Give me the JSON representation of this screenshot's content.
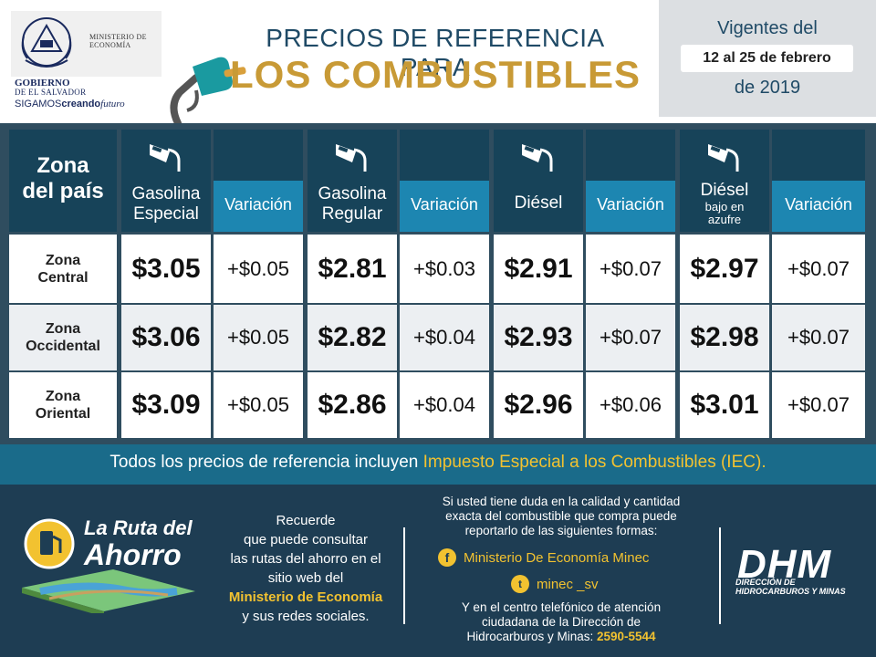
{
  "header": {
    "ministry": "MINISTERIO DE ECONOMÍA",
    "gov_line1": "GOBIERNO",
    "gov_line2": "DE EL SALVADOR",
    "slogan_a": "SIGAMOS",
    "slogan_b": "creando",
    "slogan_c": "futuro",
    "title_line1": "PRECIOS DE REFERENCIA PARA",
    "title_line2": "LOS COMBUSTIBLES"
  },
  "validity": {
    "line1": "Vigentes del",
    "dates": "12 al 25 de febrero",
    "year": "de 2019"
  },
  "table": {
    "zone_header": [
      "Zona",
      "del país"
    ],
    "variation_label": "Variación",
    "fuels": [
      {
        "name_lines": [
          "Gasolina",
          "Especial"
        ],
        "sub": ""
      },
      {
        "name_lines": [
          "Gasolina",
          "Regular"
        ],
        "sub": ""
      },
      {
        "name_lines": [
          "Diésel"
        ],
        "sub": ""
      },
      {
        "name_lines": [
          "Diésel"
        ],
        "sub": "bajo en azufre"
      }
    ],
    "rows": [
      {
        "zone": [
          "Zona",
          "Central"
        ],
        "prices": [
          "$3.05",
          "$2.81",
          "$2.91",
          "$2.97"
        ],
        "variations": [
          "+$0.05",
          "+$0.03",
          "+$0.07",
          "+$0.07"
        ]
      },
      {
        "zone": [
          "Zona",
          "Occidental"
        ],
        "prices": [
          "$3.06",
          "$2.82",
          "$2.93",
          "$2.98"
        ],
        "variations": [
          "+$0.05",
          "+$0.04",
          "+$0.07",
          "+$0.07"
        ]
      },
      {
        "zone": [
          "Zona",
          "Oriental"
        ],
        "prices": [
          "$3.09",
          "$2.86",
          "$2.96",
          "$3.01"
        ],
        "variations": [
          "+$0.05",
          "+$0.04",
          "+$0.06",
          "+$0.07"
        ]
      }
    ]
  },
  "iec": {
    "prefix": "Todos los precios de referencia incluyen ",
    "highlight": "Impuesto Especial a los Combustibles (IEC)",
    "suffix": "."
  },
  "footer": {
    "ruta_line1": "La Ruta del",
    "ruta_line2": "Ahorro",
    "recuerde_lines": [
      "Recuerde",
      "que puede consultar",
      "las rutas del ahorro en el",
      "sitio web del"
    ],
    "recuerde_highlight": "Ministerio de Economía",
    "recuerde_end": "y sus redes sociales.",
    "duda_lines": [
      "Si usted tiene duda en la calidad y cantidad",
      "exacta del combustible que compra puede",
      "reportarlo de las siguientes formas:"
    ],
    "facebook": "Ministerio De Economía Minec",
    "twitter": "minec _sv",
    "centro_lines": [
      "Y en el centro telefónico de atención",
      "ciudadana de la Dirección de"
    ],
    "centro_prefix": "Hidrocarburos y Minas: ",
    "phone": "2590-5544",
    "dhm": "DHM",
    "dhm_sub1": "DIRECCIÓN DE",
    "dhm_sub2": "HIDROCARBUROS Y MINAS"
  },
  "colors": {
    "dark_blue": "#174359",
    "accent_blue": "#1d86b1",
    "gold": "#c89a36",
    "yellow": "#f2c230",
    "footer_bg": "#1e3d53"
  },
  "icons": [
    "gas-pump-icon",
    "fuel-nozzle-icon",
    "facebook-icon",
    "twitter-icon",
    "coat-of-arms-icon",
    "road-map-icon"
  ]
}
